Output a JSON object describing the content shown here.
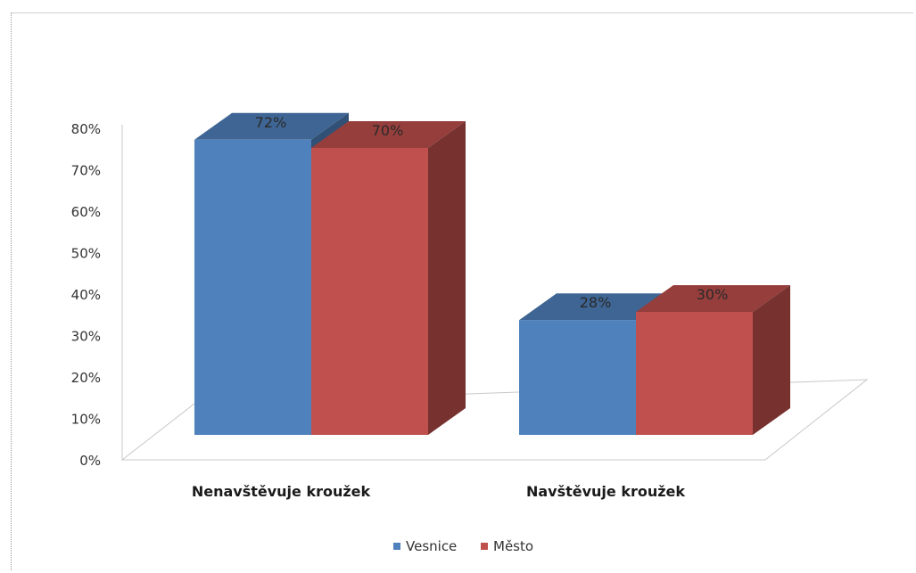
{
  "chart_data": {
    "type": "bar",
    "title": "",
    "xlabel": "",
    "ylabel": "",
    "categories": [
      "Nenavštěvuje kroužek",
      "Navštěvuje kroužek"
    ],
    "series": [
      {
        "name": "Vesnice",
        "values": [
          72,
          28
        ],
        "labels": [
          "72%",
          "28%"
        ],
        "color": "#4f81bd"
      },
      {
        "name": "Město",
        "values": [
          70,
          30
        ],
        "labels": [
          "70%",
          "30%"
        ],
        "color": "#c0504d"
      }
    ],
    "ylim": [
      0,
      80
    ],
    "yticks": [
      "0%",
      "10%",
      "20%",
      "30%",
      "40%",
      "50%",
      "60%",
      "70%",
      "80%"
    ],
    "grid": false,
    "legend_position": "bottom",
    "style": "3d-clustered-column"
  }
}
